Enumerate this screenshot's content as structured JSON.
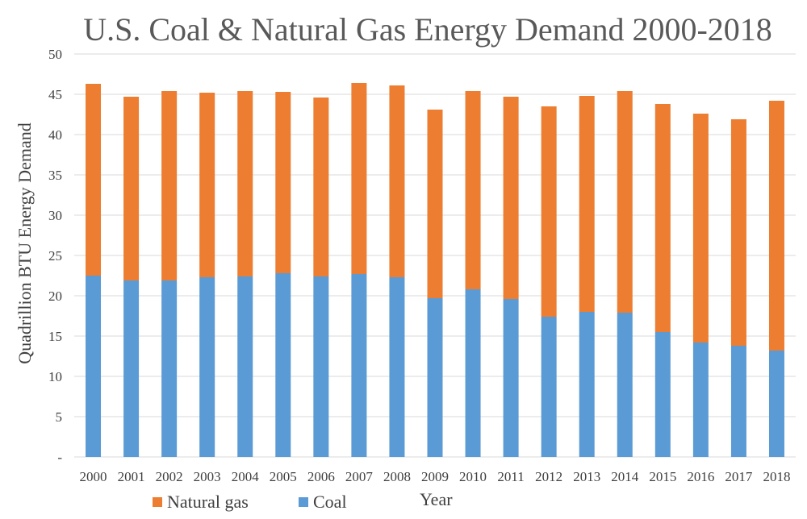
{
  "chart_data": {
    "type": "bar",
    "stacked": true,
    "title": "U.S. Coal & Natural Gas Energy Demand 2000-2018",
    "xlabel": "Year",
    "ylabel": "Quadrillion BTU Energy Demand",
    "ylim": [
      0,
      50
    ],
    "yticks": [
      "-",
      "5",
      "10",
      "15",
      "20",
      "25",
      "30",
      "35",
      "40",
      "45",
      "50"
    ],
    "grid": true,
    "legend_position": "bottom-left",
    "categories": [
      "2000",
      "2001",
      "2002",
      "2003",
      "2004",
      "2005",
      "2006",
      "2007",
      "2008",
      "2009",
      "2010",
      "2011",
      "2012",
      "2013",
      "2014",
      "2015",
      "2016",
      "2017",
      "2018"
    ],
    "series": [
      {
        "name": "Coal",
        "color": "#5b9bd5",
        "values": [
          22.5,
          21.9,
          21.9,
          22.3,
          22.4,
          22.8,
          22.4,
          22.7,
          22.3,
          19.7,
          20.8,
          19.6,
          17.4,
          18.0,
          17.9,
          15.5,
          14.2,
          13.8,
          13.2
        ]
      },
      {
        "name": "Natural gas",
        "color": "#ed7d31",
        "values": [
          23.8,
          22.8,
          23.5,
          22.9,
          23.0,
          22.5,
          22.2,
          23.7,
          23.8,
          23.4,
          24.6,
          25.1,
          26.1,
          26.8,
          27.5,
          28.3,
          28.4,
          28.1,
          31.0
        ]
      }
    ]
  }
}
